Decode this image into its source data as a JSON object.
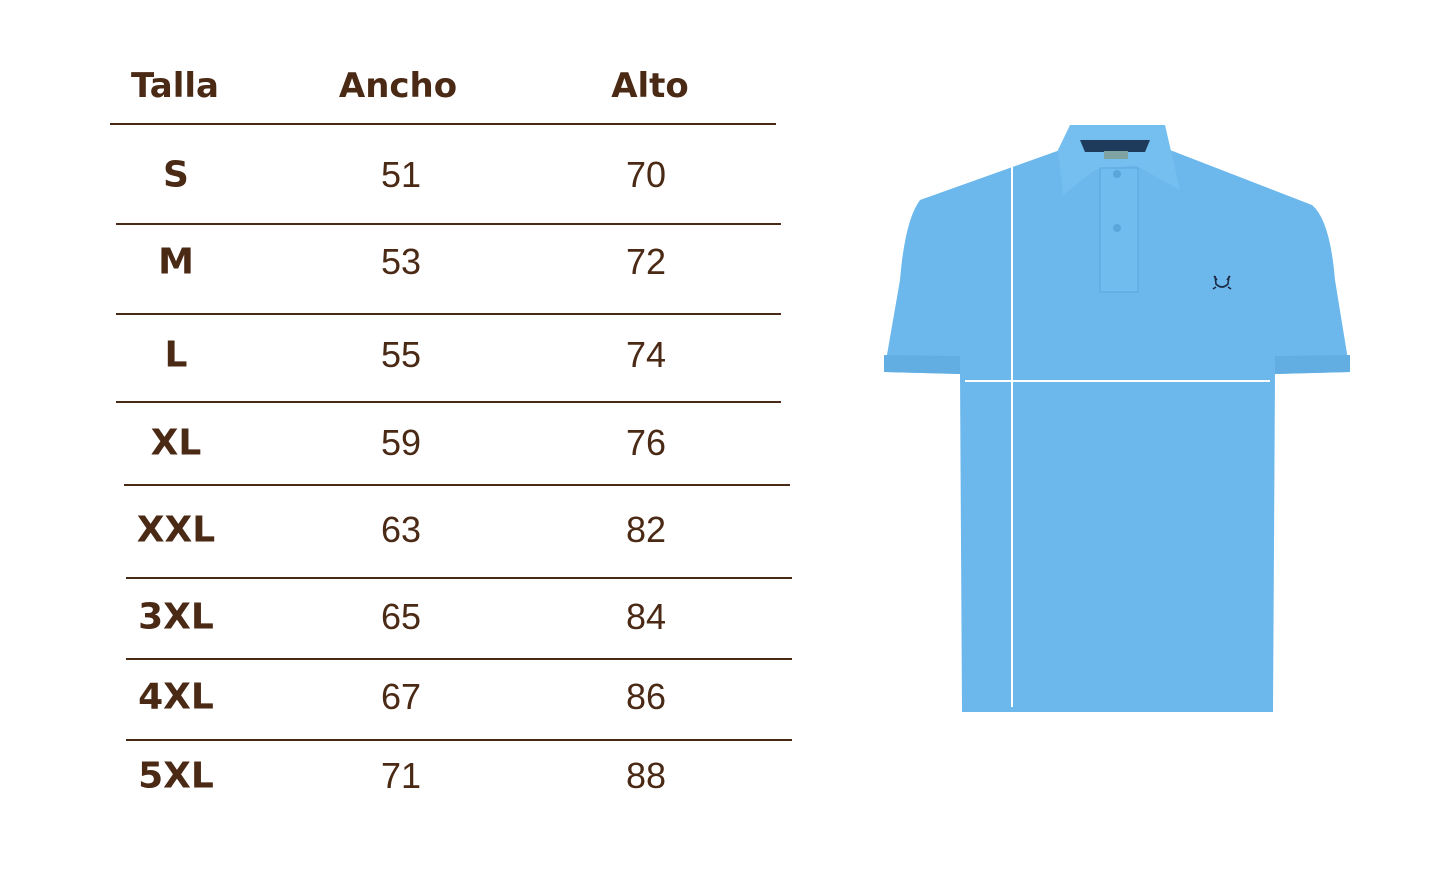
{
  "table": {
    "headers": [
      "Talla",
      "Ancho",
      "Alto"
    ],
    "rows": [
      {
        "talla": "S",
        "ancho": "51",
        "alto": "70"
      },
      {
        "talla": "M",
        "ancho": "53",
        "alto": "72"
      },
      {
        "talla": "L",
        "ancho": "55",
        "alto": "74"
      },
      {
        "talla": "XL",
        "ancho": "59",
        "alto": "76"
      },
      {
        "talla": "XXL",
        "ancho": "63",
        "alto": "82"
      },
      {
        "talla": "3XL",
        "ancho": "65",
        "alto": "84"
      },
      {
        "talla": "4XL",
        "ancho": "67",
        "alto": "86"
      },
      {
        "talla": "5XL",
        "ancho": "71",
        "alto": "88"
      }
    ]
  },
  "colors": {
    "text": "#4a2915",
    "shirt": "#6cb8ec",
    "logo": "#1d2a44"
  },
  "image": {
    "subject": "polo-shirt",
    "logo_icon": "crab-icon"
  }
}
